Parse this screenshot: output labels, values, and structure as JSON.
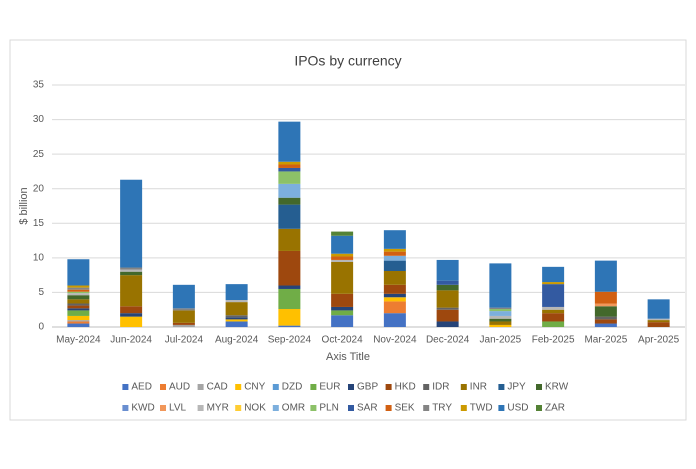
{
  "chart_data": {
    "type": "bar",
    "stacked": true,
    "title": "IPOs by currency",
    "x_label": "Axis Title",
    "y_label": "$ billion",
    "categories": [
      "May-2024",
      "Jun-2024",
      "Jul-2024",
      "Aug-2024",
      "Sep-2024",
      "Oct-2024",
      "Nov-2024",
      "Dec-2024",
      "Jan-2025",
      "Feb-2025",
      "Mar-2025",
      "Apr-2025"
    ],
    "ylim": [
      0,
      35
    ],
    "yticks": [
      0,
      5,
      10,
      15,
      20,
      25,
      30,
      35
    ],
    "grid": true,
    "legend": "bottom",
    "series": [
      {
        "name": "AED",
        "color": "#4472C4",
        "values": [
          0.5,
          0,
          0,
          0.8,
          0.2,
          1.7,
          2.0,
          0,
          0,
          0,
          0.5,
          0
        ]
      },
      {
        "name": "AUD",
        "color": "#ED7D31",
        "values": [
          0.3,
          0,
          0,
          0,
          0,
          0,
          1.7,
          0,
          0,
          0,
          0,
          0
        ]
      },
      {
        "name": "CAD",
        "color": "#A5A5A5",
        "values": [
          0.2,
          0,
          0.3,
          0,
          0,
          0,
          0,
          0,
          0,
          0,
          0,
          0
        ]
      },
      {
        "name": "CNY",
        "color": "#FFC000",
        "values": [
          0.6,
          1.5,
          0,
          0.3,
          2.4,
          0,
          0.6,
          0,
          0.3,
          0,
          0,
          0
        ]
      },
      {
        "name": "DZD",
        "color": "#5B9BD5",
        "values": [
          0,
          0,
          0,
          0,
          0,
          0,
          0,
          0,
          0,
          0,
          0,
          0
        ]
      },
      {
        "name": "EUR",
        "color": "#70AD47",
        "values": [
          0.8,
          0,
          0,
          0,
          2.9,
          0.7,
          0,
          0,
          0,
          0.8,
          0,
          0
        ]
      },
      {
        "name": "GBP",
        "color": "#264478",
        "values": [
          0.3,
          0.5,
          0,
          0.3,
          0.5,
          0.5,
          0.5,
          0.8,
          0,
          0,
          0,
          0
        ]
      },
      {
        "name": "HKD",
        "color": "#9E480E",
        "values": [
          0.4,
          1.0,
          0.3,
          0,
          5.0,
          1.9,
          1.3,
          1.7,
          0,
          1.2,
          0.6,
          0.7
        ]
      },
      {
        "name": "IDR",
        "color": "#636363",
        "values": [
          0.3,
          0,
          0,
          0.3,
          0,
          0,
          0,
          0.3,
          0,
          0,
          0.4,
          0
        ]
      },
      {
        "name": "INR",
        "color": "#997300",
        "values": [
          0.6,
          4.5,
          1.8,
          1.9,
          3.2,
          4.6,
          2.0,
          2.5,
          0.5,
          0.5,
          0,
          0.3
        ]
      },
      {
        "name": "JPY",
        "color": "#255E91",
        "values": [
          0,
          0,
          0,
          0,
          3.5,
          0,
          1.5,
          0,
          0,
          0,
          0,
          0
        ]
      },
      {
        "name": "KRW",
        "color": "#43682B",
        "values": [
          0.6,
          0.5,
          0,
          0,
          1.0,
          0,
          0,
          0.8,
          0.4,
          0,
          1.5,
          0
        ]
      },
      {
        "name": "KWD",
        "color": "#698ED0",
        "values": [
          0,
          0,
          0,
          0,
          0,
          0,
          0,
          0,
          0,
          0,
          0,
          0
        ]
      },
      {
        "name": "LVL",
        "color": "#F1975A",
        "values": [
          0,
          0,
          0,
          0,
          0,
          0,
          0,
          0,
          0,
          0,
          0.4,
          0
        ]
      },
      {
        "name": "MYR",
        "color": "#B7B7B7",
        "values": [
          0.3,
          0.3,
          0,
          0.3,
          0,
          0.3,
          0,
          0,
          0.4,
          0.4,
          0,
          0.2
        ]
      },
      {
        "name": "NOK",
        "color": "#FFCD33",
        "values": [
          0,
          0,
          0,
          0,
          0,
          0,
          0,
          0,
          0,
          0,
          0,
          0
        ]
      },
      {
        "name": "OMR",
        "color": "#7CAFDD",
        "values": [
          0,
          0,
          0,
          0,
          2.0,
          0,
          0.7,
          0,
          0.7,
          0,
          0,
          0
        ]
      },
      {
        "name": "PLN",
        "color": "#8CC168",
        "values": [
          0.2,
          0,
          0,
          0,
          1.8,
          0,
          0,
          0,
          0.3,
          0,
          0,
          0
        ]
      },
      {
        "name": "SAR",
        "color": "#335AA1",
        "values": [
          0,
          0,
          0,
          0,
          0.5,
          0,
          0,
          0.6,
          0,
          3.3,
          0,
          0
        ]
      },
      {
        "name": "SEK",
        "color": "#D26012",
        "values": [
          0.3,
          0,
          0,
          0,
          0.5,
          0.5,
          0.6,
          0,
          0,
          0,
          1.7,
          0
        ]
      },
      {
        "name": "TRY",
        "color": "#848484",
        "values": [
          0.3,
          0.3,
          0.3,
          0,
          0,
          0,
          0,
          0,
          0.2,
          0,
          0,
          0
        ]
      },
      {
        "name": "TWD",
        "color": "#CC9A00",
        "values": [
          0.3,
          0,
          0,
          0,
          0.4,
          0.4,
          0.4,
          0,
          0,
          0.3,
          0,
          0
        ]
      },
      {
        "name": "USD",
        "color": "#2E75B6",
        "values": [
          3.8,
          12.7,
          3.4,
          2.3,
          5.8,
          2.6,
          2.7,
          3.0,
          6.4,
          2.2,
          4.5,
          2.8
        ]
      },
      {
        "name": "ZAR",
        "color": "#548235",
        "values": [
          0,
          0,
          0,
          0,
          0,
          0.6,
          0,
          0,
          0,
          0,
          0,
          0
        ]
      }
    ]
  }
}
